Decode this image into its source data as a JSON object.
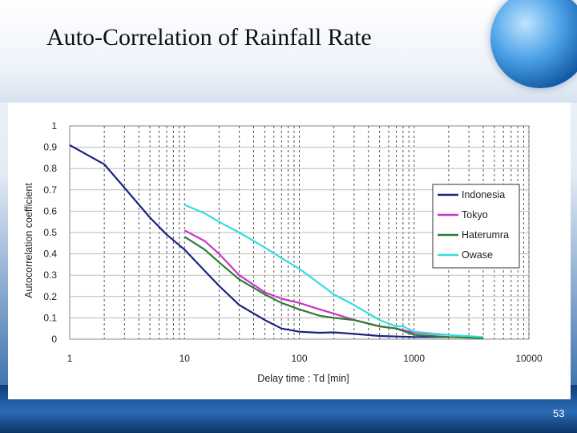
{
  "slide": {
    "title": "Auto-Correlation of Rainfall Rate",
    "number": "53"
  },
  "chart_data": {
    "type": "line",
    "title": "",
    "xlabel": "Delay time : Td [min]",
    "ylabel": "Autocorrelation coefficient",
    "xscale": "log",
    "xlim": [
      1,
      10000
    ],
    "ylim": [
      0,
      1
    ],
    "x_ticks": [
      "1",
      "10",
      "100",
      "1000",
      "10000"
    ],
    "y_ticks": [
      "0",
      "0.1",
      "0.2",
      "0.3",
      "0.4",
      "0.5",
      "0.6",
      "0.7",
      "0.8",
      "0.9",
      "1"
    ],
    "grid": true,
    "legend_position": "right",
    "series": [
      {
        "name": "Indonesia",
        "color": "#1a237e",
        "x": [
          1,
          2,
          3,
          5,
          7,
          10,
          15,
          20,
          30,
          50,
          70,
          100,
          150,
          200,
          300,
          500,
          1000,
          2000
        ],
        "y": [
          0.91,
          0.82,
          0.71,
          0.57,
          0.49,
          0.42,
          0.32,
          0.25,
          0.16,
          0.09,
          0.05,
          0.035,
          0.03,
          0.032,
          0.025,
          0.015,
          0.01,
          0.01
        ]
      },
      {
        "name": "Tokyo",
        "color": "#cc33cc",
        "x": [
          10,
          15,
          20,
          30,
          50,
          70,
          100,
          150,
          200,
          300,
          500,
          700,
          1000,
          2000
        ],
        "y": [
          0.51,
          0.46,
          0.4,
          0.3,
          0.22,
          0.19,
          0.17,
          0.14,
          0.12,
          0.09,
          0.06,
          0.05,
          0.03,
          0.02
        ]
      },
      {
        "name": "Haterumra",
        "color": "#2e7d32",
        "x": [
          10,
          15,
          20,
          30,
          50,
          70,
          100,
          150,
          200,
          300,
          500,
          700,
          1000,
          2000,
          4000
        ],
        "y": [
          0.48,
          0.42,
          0.36,
          0.28,
          0.21,
          0.17,
          0.14,
          0.11,
          0.1,
          0.09,
          0.06,
          0.05,
          0.02,
          0.01,
          0.005
        ]
      },
      {
        "name": "Owase",
        "color": "#33dddd",
        "x": [
          10,
          15,
          20,
          30,
          50,
          70,
          100,
          150,
          200,
          300,
          500,
          700,
          800,
          1000,
          2000,
          4000
        ],
        "y": [
          0.63,
          0.59,
          0.55,
          0.5,
          0.43,
          0.38,
          0.33,
          0.26,
          0.21,
          0.16,
          0.09,
          0.06,
          0.06,
          0.035,
          0.02,
          0.01
        ]
      }
    ]
  }
}
